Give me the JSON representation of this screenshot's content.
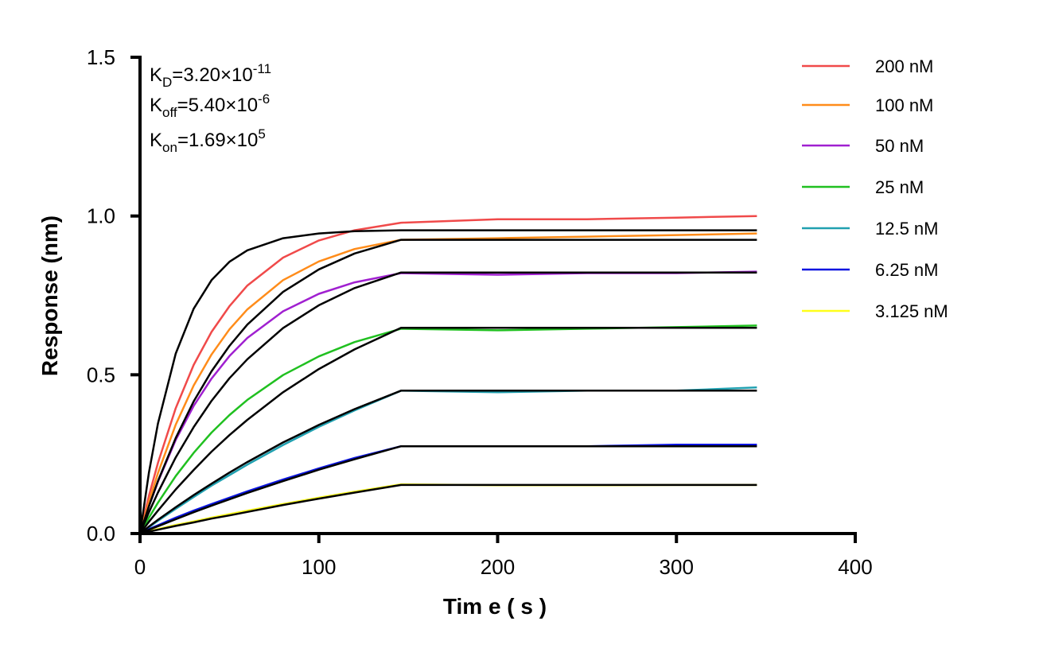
{
  "chart_data": {
    "type": "line",
    "title": "",
    "xlabel": "Tim e ( s )",
    "ylabel": "Response (nm)",
    "xlim": [
      0,
      400
    ],
    "ylim": [
      0,
      1.5
    ],
    "xticks": [
      "0",
      "100",
      "200",
      "300",
      "400"
    ],
    "yticks": [
      "0.0",
      "0.5",
      "1.0",
      "1.5"
    ],
    "grid": false,
    "legend_position": "top-right",
    "annotations": {
      "kd": {
        "k": "K",
        "sub": "D",
        "val": "=3.20×10",
        "exp": "-11"
      },
      "koff": {
        "k": "K",
        "sub": "off",
        "val": "=5.40×10",
        "exp": "-6"
      },
      "kon": {
        "k": "K",
        "sub": "on",
        "val": "=1.69×10",
        "exp": "5"
      }
    },
    "fit_color": "#000000",
    "x_association": [
      0,
      5,
      10,
      20,
      30,
      40,
      50,
      60,
      80,
      100,
      120,
      146
    ],
    "x_dissociation": [
      200,
      250,
      300,
      345
    ],
    "series": [
      {
        "name": "200 nM",
        "color": "#f04a4a",
        "data_assoc": [
          0,
          0.119,
          0.222,
          0.395,
          0.531,
          0.635,
          0.716,
          0.781,
          0.869,
          0.923,
          0.955,
          0.979
        ],
        "data_dissoc": [
          0.99,
          0.99,
          0.995,
          1.0
        ],
        "fit_assoc": [
          0,
          0.192,
          0.346,
          0.567,
          0.708,
          0.798,
          0.856,
          0.892,
          0.93,
          0.945,
          0.952,
          0.955
        ],
        "fit_dissoc": 0.955
      },
      {
        "name": "100 nM",
        "color": "#ff8c1a",
        "data_assoc": [
          0,
          0.1,
          0.19,
          0.343,
          0.466,
          0.564,
          0.643,
          0.706,
          0.798,
          0.857,
          0.896,
          0.925
        ],
        "data_dissoc": [
          0.93,
          0.935,
          0.94,
          0.945
        ],
        "fit_assoc": [
          0,
          0.086,
          0.165,
          0.301,
          0.416,
          0.511,
          0.591,
          0.658,
          0.761,
          0.832,
          0.882,
          0.925
        ],
        "fit_dissoc": 0.925
      },
      {
        "name": "50 nM",
        "color": "#a020d0",
        "data_assoc": [
          0,
          0.086,
          0.163,
          0.295,
          0.402,
          0.488,
          0.559,
          0.616,
          0.7,
          0.755,
          0.791,
          0.82
        ],
        "data_dissoc": [
          0.815,
          0.82,
          0.82,
          0.825
        ],
        "fit_assoc": [
          0,
          0.067,
          0.129,
          0.24,
          0.335,
          0.418,
          0.489,
          0.549,
          0.647,
          0.719,
          0.773,
          0.822
        ],
        "fit_dissoc": 0.822
      },
      {
        "name": "25 nM",
        "color": "#20c020",
        "data_assoc": [
          0,
          0.05,
          0.097,
          0.181,
          0.254,
          0.318,
          0.373,
          0.421,
          0.499,
          0.558,
          0.603,
          0.645
        ],
        "data_dissoc": [
          0.64,
          0.645,
          0.65,
          0.655
        ],
        "fit_assoc": [
          0,
          0.037,
          0.072,
          0.139,
          0.2,
          0.258,
          0.31,
          0.358,
          0.445,
          0.518,
          0.58,
          0.648
        ],
        "fit_dissoc": 0.648
      },
      {
        "name": "12.5 nM",
        "color": "#20a0b0",
        "data_assoc": [
          0,
          0.02,
          0.04,
          0.078,
          0.115,
          0.151,
          0.184,
          0.217,
          0.279,
          0.336,
          0.388,
          0.45
        ],
        "data_dissoc": [
          0.445,
          0.45,
          0.45,
          0.46
        ],
        "fit_assoc": [
          0,
          0.022,
          0.043,
          0.083,
          0.121,
          0.157,
          0.192,
          0.225,
          0.287,
          0.342,
          0.392,
          0.45
        ],
        "fit_dissoc": 0.45
      },
      {
        "name": "6.25 nM",
        "color": "#0a14e0",
        "data_assoc": [
          0,
          0.014,
          0.026,
          0.05,
          0.072,
          0.093,
          0.113,
          0.133,
          0.17,
          0.205,
          0.238,
          0.275
        ],
        "data_dissoc": [
          0.275,
          0.275,
          0.28,
          0.28
        ],
        "fit_assoc": [
          0,
          0.012,
          0.023,
          0.045,
          0.067,
          0.088,
          0.108,
          0.128,
          0.165,
          0.201,
          0.234,
          0.275
        ],
        "fit_dissoc": 0.275
      },
      {
        "name": "3.125 nM",
        "color": "#ffff1a",
        "data_assoc": [
          0,
          0.007,
          0.014,
          0.027,
          0.038,
          0.05,
          0.061,
          0.072,
          0.093,
          0.113,
          0.132,
          0.155
        ],
        "data_dissoc": [
          0.152,
          0.152,
          0.153,
          0.153
        ],
        "fit_assoc": [
          0,
          0.006,
          0.012,
          0.024,
          0.035,
          0.047,
          0.057,
          0.068,
          0.09,
          0.11,
          0.129,
          0.153
        ],
        "fit_dissoc": 0.153
      }
    ]
  }
}
